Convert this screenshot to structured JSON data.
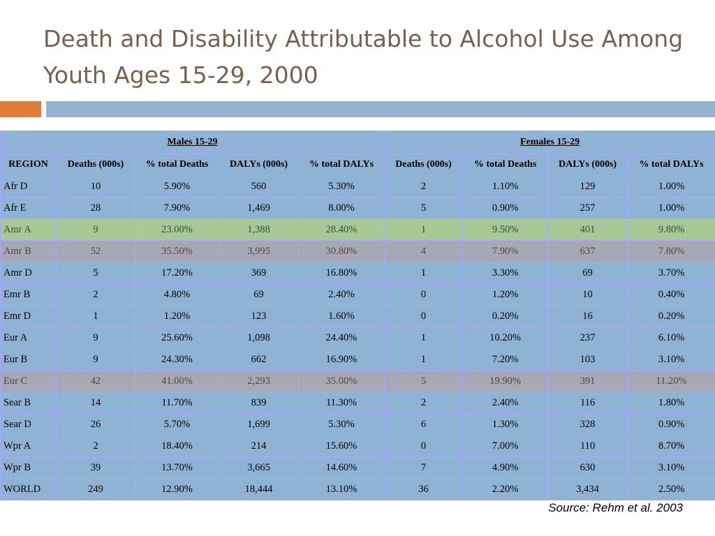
{
  "title": "Death and Disability Attributable to Alcohol Use Among Youth Ages 15-29, 2000",
  "table": {
    "group_headers": {
      "males": "Males 15-29",
      "females": "Females 15-29"
    },
    "columns": [
      "REGION",
      "Deaths (000s)",
      "% total Deaths",
      "DALYs (000s)",
      "% total DALYs",
      "Deaths (000s)",
      "% total Deaths",
      "DALYs (000s)",
      "% total DALYs"
    ],
    "rows": [
      {
        "cells": [
          "Afr D",
          "10",
          "5.90%",
          "560",
          "5.30%",
          "2",
          "1.10%",
          "129",
          "1.00%"
        ],
        "highlight": ""
      },
      {
        "cells": [
          "Afr E",
          "28",
          "7.90%",
          "1,469",
          "8.00%",
          "5",
          "0.90%",
          "257",
          "1.00%"
        ],
        "highlight": ""
      },
      {
        "cells": [
          "Amr A",
          "9",
          "23.00%",
          "1,388",
          "28.40%",
          "1",
          "9.50%",
          "401",
          "9.80%"
        ],
        "highlight": "green"
      },
      {
        "cells": [
          "Amr B",
          "52",
          "35.50%",
          "3,995",
          "30.80%",
          "4",
          "7.90%",
          "637",
          "7.80%"
        ],
        "highlight": "gray"
      },
      {
        "cells": [
          "Amr D",
          "5",
          "17.20%",
          "369",
          "16.80%",
          "1",
          "3.30%",
          "69",
          "3.70%"
        ],
        "highlight": ""
      },
      {
        "cells": [
          "Emr B",
          "2",
          "4.80%",
          "69",
          "2.40%",
          "0",
          "1.20%",
          "10",
          "0.40%"
        ],
        "highlight": ""
      },
      {
        "cells": [
          "Emr D",
          "1",
          "1.20%",
          "123",
          "1.60%",
          "0",
          "0.20%",
          "16",
          "0.20%"
        ],
        "highlight": ""
      },
      {
        "cells": [
          "Eur A",
          "9",
          "25.60%",
          "1,098",
          "24.40%",
          "1",
          "10.20%",
          "237",
          "6.10%"
        ],
        "highlight": ""
      },
      {
        "cells": [
          "Eur B",
          "9",
          "24.30%",
          "662",
          "16.90%",
          "1",
          "7.20%",
          "103",
          "3.10%"
        ],
        "highlight": ""
      },
      {
        "cells": [
          "Eur C",
          "42",
          "41.00%",
          "2,293",
          "35.00%",
          "5",
          "19.90%",
          "391",
          "11.20%"
        ],
        "highlight": "gray"
      },
      {
        "cells": [
          "Sear B",
          "14",
          "11.70%",
          "839",
          "11.30%",
          "2",
          "2.40%",
          "116",
          "1.80%"
        ],
        "highlight": ""
      },
      {
        "cells": [
          "Sear D",
          "26",
          "5.70%",
          "1,699",
          "5.30%",
          "6",
          "1.30%",
          "328",
          "0.90%"
        ],
        "highlight": ""
      },
      {
        "cells": [
          "Wpr A",
          "2",
          "18.40%",
          "214",
          "15.60%",
          "0",
          "7.00%",
          "110",
          "8.70%"
        ],
        "highlight": ""
      },
      {
        "cells": [
          "Wpr B",
          "39",
          "13.70%",
          "3,665",
          "14.60%",
          "7",
          "4.90%",
          "630",
          "3.10%"
        ],
        "highlight": ""
      },
      {
        "cells": [
          "WORLD",
          "249",
          "12.90%",
          "18,444",
          "13.10%",
          "36",
          "2.20%",
          "3,434",
          "2.50%"
        ],
        "highlight": ""
      }
    ]
  },
  "source": "Source:  Rehm et al. 2003",
  "colors": {
    "title": "#7a5f4d",
    "accent_orange": "#e07b3a",
    "accent_blue": "#93b3cf",
    "table_bg": "#8eb3d4",
    "highlight_green": "#a6c796",
    "highlight_gray": "#a7a8b6"
  }
}
